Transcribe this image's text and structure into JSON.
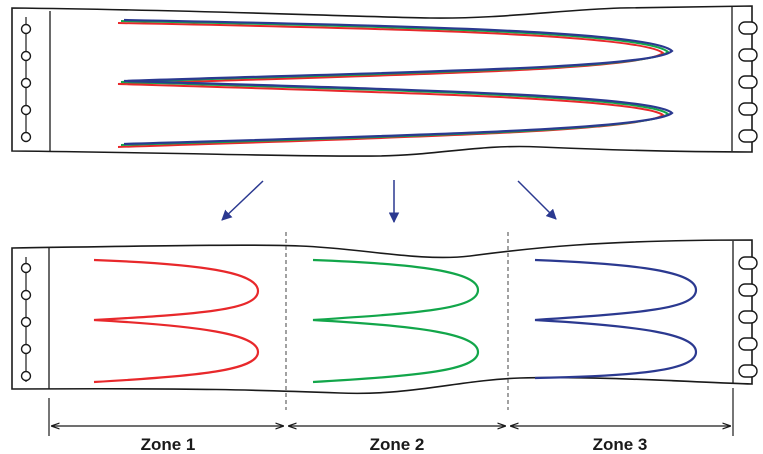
{
  "zones": [
    {
      "label": "Zone 1",
      "color": "#e8282b"
    },
    {
      "label": "Zone 2",
      "color": "#12a64a"
    },
    {
      "label": "Zone 3",
      "color": "#2b3990"
    }
  ],
  "colors": {
    "outline": "#1a1a1a",
    "arrow": "#2b3990",
    "divider": "#555555"
  }
}
